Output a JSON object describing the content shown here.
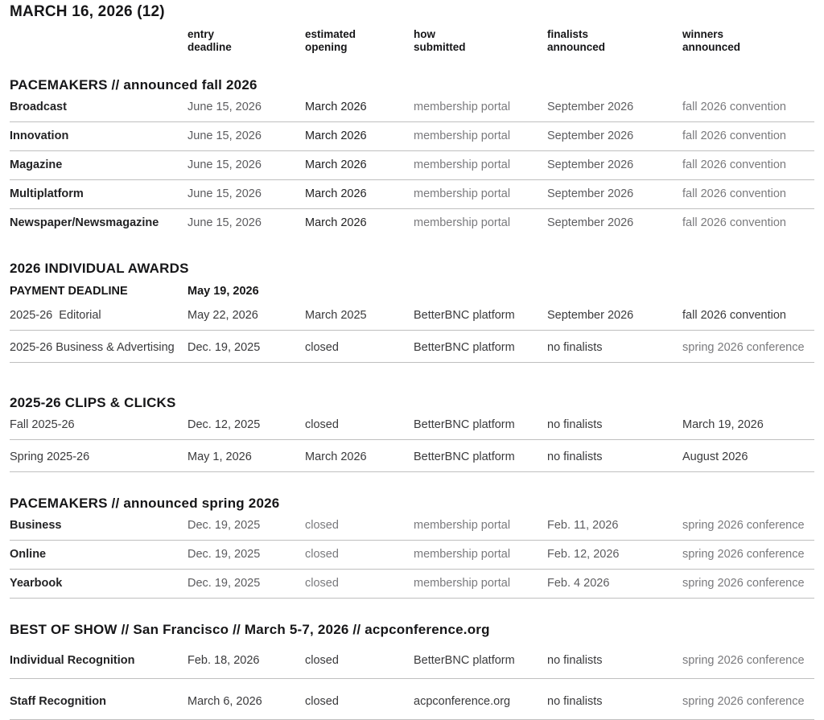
{
  "page": {
    "title": "MARCH 16, 2026 (12)"
  },
  "palette": {
    "heading": "#161618",
    "label": "#232325",
    "dark": "#3a3a3c",
    "medium": "#5c5c5f",
    "gray": "#7a7a7d",
    "divider": "#bfbfbf"
  },
  "columns": [
    {
      "id": "entry-deadline",
      "label": "entry\ndeadline"
    },
    {
      "id": "estimated-opening",
      "label": "estimated\nopening"
    },
    {
      "id": "how-submitted",
      "label": "how\nsubmitted"
    },
    {
      "id": "finalists-announced",
      "label": "finalists\nannounced"
    },
    {
      "id": "winners-announced",
      "label": "winners\nannounced"
    }
  ],
  "sections": [
    {
      "id": "pacemakers-fall",
      "heading": "PACEMAKERS // announced fall 2026",
      "label_bold": true,
      "rows": [
        {
          "label": "Broadcast",
          "cells": [
            {
              "text": "June 15, 2026",
              "tone": "medium"
            },
            {
              "text": "March 2026",
              "tone": "black"
            },
            {
              "text": "membership portal",
              "tone": "gray"
            },
            {
              "text": "September 2026",
              "tone": "medium"
            },
            {
              "text": "fall 2026 convention",
              "tone": "gray"
            }
          ]
        },
        {
          "label": "Innovation",
          "cells": [
            {
              "text": "June 15, 2026",
              "tone": "medium"
            },
            {
              "text": "March 2026",
              "tone": "black"
            },
            {
              "text": "membership portal",
              "tone": "gray"
            },
            {
              "text": "September 2026",
              "tone": "medium"
            },
            {
              "text": "fall 2026 convention",
              "tone": "gray"
            }
          ]
        },
        {
          "label": "Magazine",
          "cells": [
            {
              "text": "June 15, 2026",
              "tone": "medium"
            },
            {
              "text": "March 2026",
              "tone": "black"
            },
            {
              "text": "membership portal",
              "tone": "gray"
            },
            {
              "text": "September 2026",
              "tone": "medium"
            },
            {
              "text": "fall 2026 convention",
              "tone": "gray"
            }
          ]
        },
        {
          "label": "Multiplatform",
          "cells": [
            {
              "text": "June 15, 2026",
              "tone": "medium"
            },
            {
              "text": "March 2026",
              "tone": "black"
            },
            {
              "text": "membership portal",
              "tone": "gray"
            },
            {
              "text": "September 2026",
              "tone": "medium"
            },
            {
              "text": "fall 2026 convention",
              "tone": "gray"
            }
          ]
        },
        {
          "label": "Newspaper/Newsmagazine",
          "divider": false,
          "cells": [
            {
              "text": "June 15, 2026",
              "tone": "medium"
            },
            {
              "text": "March 2026",
              "tone": "black"
            },
            {
              "text": "membership portal",
              "tone": "gray"
            },
            {
              "text": "September 2026",
              "tone": "medium"
            },
            {
              "text": "fall 2026 convention",
              "tone": "gray"
            }
          ]
        }
      ]
    },
    {
      "id": "individual-awards",
      "heading": "2026 INDIVIDUAL AWARDS",
      "label_bold": false,
      "subheader": {
        "label": "PAYMENT DEADLINE",
        "value": "May 19, 2026"
      },
      "rows": [
        {
          "label": "2025-26  Editorial",
          "cells": [
            {
              "text": "May 22, 2026",
              "tone": "dark"
            },
            {
              "text": "March 2025",
              "tone": "dark"
            },
            {
              "text": "BetterBNC platform",
              "tone": "dark"
            },
            {
              "text": "September 2026",
              "tone": "dark"
            },
            {
              "text": "fall 2026 convention",
              "tone": "dark"
            }
          ]
        },
        {
          "label": "2025-26 Business & Advertising",
          "spaced": true,
          "cells": [
            {
              "text": "Dec. 19, 2025",
              "tone": "dark"
            },
            {
              "text": "closed",
              "tone": "dark"
            },
            {
              "text": "BetterBNC platform",
              "tone": "dark"
            },
            {
              "text": "no finalists",
              "tone": "dark"
            },
            {
              "text": "spring 2026 conference",
              "tone": "gray"
            }
          ]
        }
      ]
    },
    {
      "id": "clips-clicks",
      "heading": "2025-26 CLIPS & CLICKS",
      "label_bold": false,
      "gap": "lg",
      "rows": [
        {
          "label": "Fall 2025-26",
          "cells": [
            {
              "text": "Dec. 12, 2025",
              "tone": "dark"
            },
            {
              "text": "closed",
              "tone": "dark"
            },
            {
              "text": "BetterBNC platform",
              "tone": "dark"
            },
            {
              "text": "no finalists",
              "tone": "dark"
            },
            {
              "text": "March 19, 2026",
              "tone": "dark"
            }
          ]
        },
        {
          "label": "Spring 2025-26",
          "spaced": true,
          "cells": [
            {
              "text": "May 1, 2026",
              "tone": "dark"
            },
            {
              "text": "March 2026",
              "tone": "dark"
            },
            {
              "text": "BetterBNC platform",
              "tone": "dark"
            },
            {
              "text": "no finalists",
              "tone": "dark"
            },
            {
              "text": "August 2026",
              "tone": "dark"
            }
          ]
        }
      ]
    },
    {
      "id": "pacemakers-spring",
      "heading": "PACEMAKERS // announced spring 2026",
      "label_bold": true,
      "rows": [
        {
          "label": "Business",
          "cells": [
            {
              "text": "Dec. 19, 2025",
              "tone": "medium"
            },
            {
              "text": "closed",
              "tone": "gray"
            },
            {
              "text": "membership portal",
              "tone": "gray"
            },
            {
              "text": "Feb. 11, 2026",
              "tone": "medium"
            },
            {
              "text": "spring 2026 conference",
              "tone": "gray"
            }
          ]
        },
        {
          "label": "Online",
          "cells": [
            {
              "text": "Dec. 19, 2025",
              "tone": "medium"
            },
            {
              "text": "closed",
              "tone": "gray"
            },
            {
              "text": "membership portal",
              "tone": "gray"
            },
            {
              "text": "Feb. 12, 2026",
              "tone": "medium"
            },
            {
              "text": "spring 2026 conference",
              "tone": "gray"
            }
          ]
        },
        {
          "label": "Yearbook",
          "cells": [
            {
              "text": "Dec. 19, 2025",
              "tone": "medium"
            },
            {
              "text": "closed",
              "tone": "gray"
            },
            {
              "text": "membership portal",
              "tone": "gray"
            },
            {
              "text": "Feb. 4 2026",
              "tone": "medium"
            },
            {
              "text": "spring 2026 conference",
              "tone": "gray"
            }
          ]
        }
      ]
    },
    {
      "id": "best-of-show",
      "heading": "BEST OF SHOW // San Francisco // March 5-7, 2026 // acpconference.org",
      "label_bold": true,
      "tall": true,
      "rows": [
        {
          "label": "Individual Recognition",
          "cells": [
            {
              "text": "Feb. 18, 2026",
              "tone": "dark"
            },
            {
              "text": "closed",
              "tone": "dark"
            },
            {
              "text": "BetterBNC platform",
              "tone": "dark"
            },
            {
              "text": "no finalists",
              "tone": "dark"
            },
            {
              "text": "spring 2026 conference",
              "tone": "gray"
            }
          ]
        },
        {
          "label": "Staff Recognition",
          "cells": [
            {
              "text": "March 6, 2026",
              "tone": "dark"
            },
            {
              "text": "closed",
              "tone": "dark"
            },
            {
              "text": "acpconference.org",
              "tone": "dark"
            },
            {
              "text": "no finalists",
              "tone": "dark"
            },
            {
              "text": "spring 2026 conference",
              "tone": "gray"
            }
          ]
        }
      ]
    }
  ]
}
